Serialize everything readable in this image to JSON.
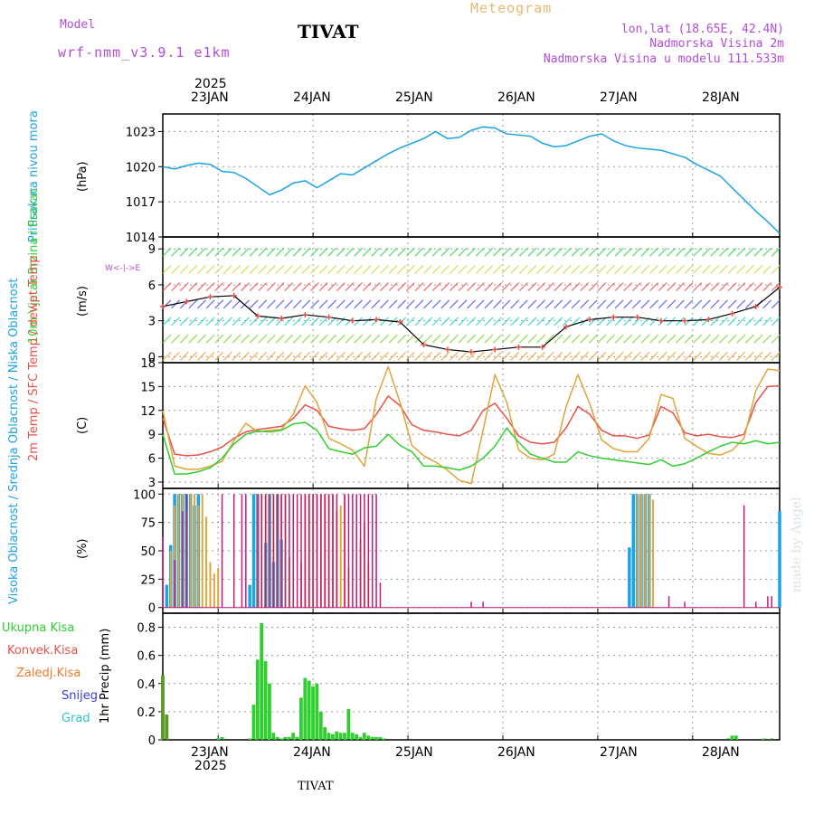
{
  "header": {
    "model_label": "Model",
    "model_name": "wrf-nmm_v3.9.1 e1km",
    "station": "TIVAT",
    "product": "Meteogram",
    "lonlat": "lon,lat (18.65E, 42.4N)",
    "elevation": "Nadmorska Visina 2m",
    "model_elevation": "Nadmorska Visina u modelu 111.533m",
    "watermark": "made by Angel",
    "footer_station": "TIVAT"
  },
  "colors": {
    "pressure": "#1ca3e6",
    "temp": "#e8504a",
    "sfc_temp": "#e0a53a",
    "dewpt": "#2fcf2f",
    "high_cloud": "#1ca3e6",
    "mid_cloud": "#e0a53a",
    "low_cloud": "#c21a7a",
    "precip": "#2fcf2f",
    "wind_speed_marker": "#e8504a"
  },
  "time_axis": {
    "year": "2025",
    "days": [
      "23JAN",
      "24JAN",
      "25JAN",
      "26JAN",
      "27JAN",
      "28JAN"
    ]
  },
  "chart_data": [
    {
      "type": "line",
      "panel": "pressure",
      "ylabel": "Pritisak na nivou mora",
      "units": "(hPa)",
      "ylim": [
        1014,
        1024.5
      ],
      "yticks": [
        1014,
        1017,
        1020,
        1023
      ],
      "x_hours": [
        0,
        3,
        6,
        9,
        12,
        15,
        18,
        21,
        24,
        27,
        30,
        33,
        36,
        39,
        42,
        45,
        48,
        51,
        54,
        57,
        60,
        63,
        66,
        69,
        72,
        75,
        78,
        81,
        84,
        87,
        90,
        93,
        96,
        99,
        102,
        105,
        108,
        111,
        114,
        117,
        120,
        123,
        126,
        129,
        132,
        135,
        138,
        141,
        144,
        147,
        150,
        153,
        156
      ],
      "series": [
        {
          "name": "Pritisak na nivou mora",
          "values": [
            1020.0,
            1019.8,
            1020.1,
            1020.3,
            1020.2,
            1019.6,
            1019.5,
            1019.0,
            1018.3,
            1017.6,
            1018.0,
            1018.6,
            1018.8,
            1018.2,
            1018.8,
            1019.4,
            1019.3,
            1019.9,
            1020.5,
            1021.1,
            1021.6,
            1022.0,
            1022.4,
            1023.0,
            1022.4,
            1022.5,
            1023.1,
            1023.4,
            1023.3,
            1022.8,
            1022.7,
            1022.6,
            1022.0,
            1021.7,
            1021.8,
            1022.2,
            1022.6,
            1022.8,
            1022.2,
            1021.8,
            1021.6,
            1021.5,
            1021.4,
            1021.1,
            1020.8,
            1020.2,
            1019.7,
            1019.2,
            1018.2,
            1017.2,
            1016.2,
            1015.3,
            1014.3
          ]
        }
      ]
    },
    {
      "type": "line",
      "panel": "wind",
      "ylabel": "10m Vjetar Brzina i Pravac",
      "units": "(m/s)",
      "ylim": [
        -0.5,
        10
      ],
      "yticks": [
        0,
        3,
        6,
        9
      ],
      "direction_legend": {
        "n": "N",
        "s": "S",
        "w": "W",
        "e": "E"
      },
      "x_hours": [
        0,
        6,
        12,
        18,
        24,
        30,
        36,
        42,
        48,
        54,
        60,
        66,
        72,
        78,
        84,
        90,
        96,
        102,
        108,
        114,
        120,
        126,
        132,
        138,
        144,
        150,
        156
      ],
      "series": [
        {
          "name": "10m Vjetar",
          "values": [
            4.2,
            4.6,
            5.0,
            5.1,
            3.4,
            3.2,
            3.5,
            3.3,
            3.0,
            3.1,
            2.9,
            1.0,
            0.6,
            0.4,
            0.6,
            0.8,
            0.8,
            2.5,
            3.1,
            3.3,
            3.3,
            3.0,
            3.0,
            3.1,
            3.6,
            4.2,
            5.8
          ]
        }
      ]
    },
    {
      "type": "line",
      "panel": "temperature",
      "ylabel": "2m Temp / SFC Temp / dewpt Temp",
      "units": "(C)",
      "ylim": [
        2.2,
        18
      ],
      "yticks": [
        3,
        6,
        9,
        12,
        15,
        18
      ],
      "x_hours": [
        0,
        3,
        6,
        9,
        12,
        15,
        18,
        21,
        24,
        27,
        30,
        33,
        36,
        39,
        42,
        45,
        48,
        51,
        54,
        57,
        60,
        63,
        66,
        69,
        72,
        75,
        78,
        81,
        84,
        87,
        90,
        93,
        96,
        99,
        102,
        105,
        108,
        111,
        114,
        117,
        120,
        123,
        126,
        129,
        132,
        135,
        138,
        141,
        144,
        147,
        150,
        153,
        156
      ],
      "series": [
        {
          "name": "2m Temp",
          "values": [
            11.0,
            6.5,
            6.3,
            6.4,
            6.8,
            7.4,
            8.5,
            9.3,
            9.6,
            9.8,
            10.0,
            11.0,
            12.7,
            12.0,
            10.0,
            9.7,
            9.5,
            9.7,
            11.5,
            13.8,
            12.6,
            10.2,
            9.5,
            9.3,
            9.0,
            8.8,
            9.5,
            12.0,
            12.9,
            11.0,
            8.8,
            8.0,
            7.8,
            8.0,
            9.8,
            12.5,
            11.5,
            9.5,
            8.8,
            8.8,
            8.5,
            8.9,
            12.5,
            11.7,
            9.2,
            8.8,
            9.0,
            8.7,
            8.6,
            9.0,
            13.0,
            15.0,
            15.1
          ]
        },
        {
          "name": "SFC Temp",
          "values": [
            12.0,
            5.0,
            4.6,
            4.6,
            5.0,
            5.6,
            8.2,
            10.4,
            9.3,
            9.5,
            9.6,
            11.5,
            15.1,
            13.0,
            8.5,
            7.8,
            7.0,
            5.0,
            13.5,
            17.5,
            13.0,
            7.6,
            6.3,
            5.5,
            4.5,
            3.2,
            2.8,
            9.5,
            16.5,
            13.0,
            7.0,
            6.0,
            5.8,
            6.5,
            12.5,
            16.5,
            12.8,
            8.3,
            7.2,
            6.8,
            6.8,
            8.5,
            14.0,
            13.5,
            8.5,
            7.5,
            6.6,
            6.4,
            7.0,
            8.5,
            14.5,
            17.2,
            17.0
          ]
        },
        {
          "name": "dewpt Temp",
          "values": [
            9.0,
            4.0,
            4.0,
            4.3,
            4.8,
            6.0,
            7.8,
            9.0,
            9.4,
            9.3,
            9.5,
            10.3,
            10.5,
            9.5,
            7.2,
            6.8,
            6.5,
            7.3,
            7.5,
            9.0,
            7.6,
            6.8,
            5.0,
            5.0,
            4.8,
            4.5,
            5.0,
            6.0,
            7.5,
            9.8,
            8.0,
            6.5,
            6.0,
            5.5,
            5.5,
            6.8,
            6.3,
            6.0,
            5.8,
            5.6,
            5.4,
            5.2,
            5.8,
            5.0,
            5.3,
            6.0,
            6.8,
            7.5,
            8.0,
            7.8,
            8.2,
            7.8,
            8.0
          ]
        }
      ]
    },
    {
      "type": "bar",
      "panel": "clouds",
      "ylabel": "Visoka Oblacnost / Srednja Oblacnost / Niska Oblacnost",
      "units": "(%)",
      "ylim": [
        -5,
        105
      ],
      "yticks": [
        0,
        25,
        50,
        75,
        100
      ],
      "series": [
        {
          "name": "Visoka Oblacnost",
          "x_hours": [
            1,
            2,
            3,
            4,
            5,
            6,
            7,
            8,
            9,
            22,
            23,
            24,
            26,
            27,
            28,
            29,
            30,
            118,
            119,
            120,
            121,
            122,
            123,
            156
          ],
          "values": [
            20,
            55,
            100,
            100,
            100,
            100,
            100,
            90,
            100,
            20,
            100,
            100,
            57,
            100,
            40,
            100,
            60,
            53,
            100,
            100,
            100,
            100,
            100,
            85
          ]
        },
        {
          "name": "Srednja Oblacnost",
          "x_hours": [
            2,
            3,
            4,
            5,
            6,
            7,
            8,
            9,
            10,
            11,
            12,
            13,
            14,
            24,
            25,
            26,
            27,
            28,
            29,
            30,
            31,
            32,
            35,
            36,
            37,
            38,
            39,
            40,
            41,
            42,
            43,
            44,
            45,
            46,
            47,
            50,
            51,
            52,
            120,
            121,
            122,
            123,
            124
          ],
          "values": [
            50,
            90,
            100,
            100,
            85,
            100,
            100,
            90,
            100,
            80,
            40,
            30,
            35,
            100,
            100,
            100,
            100,
            100,
            100,
            100,
            100,
            45,
            40,
            100,
            100,
            100,
            100,
            100,
            100,
            100,
            100,
            85,
            90,
            100,
            35,
            60,
            75,
            40,
            100,
            100,
            100,
            100,
            95
          ]
        },
        {
          "name": "Niska Oblacnost",
          "x_hours": [
            0,
            3,
            5,
            6,
            15,
            18,
            20,
            21,
            24,
            25,
            26,
            27,
            28,
            29,
            30,
            31,
            32,
            33,
            34,
            35,
            36,
            37,
            38,
            39,
            40,
            41,
            42,
            43,
            44,
            46,
            47,
            48,
            49,
            50,
            51,
            52,
            53,
            54,
            55,
            56,
            78,
            81,
            128,
            132,
            147,
            150,
            153,
            154
          ],
          "values": [
            62,
            42,
            85,
            100,
            100,
            100,
            100,
            100,
            100,
            100,
            100,
            100,
            100,
            100,
            100,
            100,
            100,
            100,
            100,
            100,
            100,
            100,
            100,
            100,
            100,
            100,
            100,
            100,
            100,
            100,
            100,
            100,
            100,
            100,
            100,
            100,
            100,
            100,
            22,
            0,
            5,
            5,
            10,
            5,
            90,
            5,
            10,
            10
          ]
        }
      ]
    },
    {
      "type": "bar",
      "panel": "precipitation",
      "ylabel": "1hr Precip (mm)",
      "ylim": [
        0,
        0.9
      ],
      "yticks": [
        0,
        0.2,
        0.4,
        0.6,
        0.8
      ],
      "legend": [
        "Ukupna Kisa",
        "Konvek.Kisa",
        "Zaledj.Kisa",
        "Snijeg",
        "Grad"
      ],
      "x_hours": [
        0,
        1,
        2,
        3,
        14,
        15,
        22,
        23,
        24,
        25,
        26,
        27,
        28,
        29,
        30,
        31,
        32,
        33,
        34,
        35,
        36,
        37,
        38,
        39,
        40,
        41,
        42,
        43,
        44,
        45,
        46,
        47,
        48,
        49,
        50,
        51,
        52,
        53,
        54,
        55,
        56,
        57,
        143,
        144,
        145,
        152,
        154
      ],
      "values": [
        0.46,
        0.18,
        0.0,
        0.0,
        0.01,
        0.02,
        0.01,
        0.25,
        0.57,
        0.83,
        0.56,
        0.4,
        0.05,
        0.02,
        0.01,
        0.02,
        0.02,
        0.05,
        0.02,
        0.3,
        0.44,
        0.42,
        0.38,
        0.4,
        0.2,
        0.09,
        0.05,
        0.04,
        0.06,
        0.05,
        0.05,
        0.22,
        0.05,
        0.04,
        0.02,
        0.05,
        0.03,
        0.02,
        0.02,
        0.02,
        0.01,
        0.0,
        0.01,
        0.03,
        0.03,
        0.01,
        0.01
      ]
    }
  ]
}
